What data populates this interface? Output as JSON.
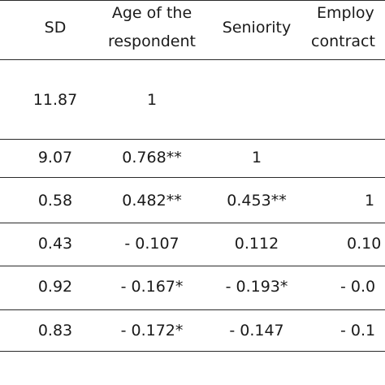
{
  "header": {
    "sd": "SD",
    "age_line1": "Age of the",
    "age_line2": "respondent",
    "seniority": "Seniority",
    "emp_line1": "Employ",
    "emp_line2": "contract"
  },
  "rows": [
    {
      "sd": "11.87",
      "age": "1",
      "seniority": "",
      "employment": ""
    },
    {
      "sd": "9.07",
      "age": "0.768**",
      "seniority": "1",
      "employment": ""
    },
    {
      "sd": "0.58",
      "age": "0.482**",
      "seniority": "0.453**",
      "employment": "1"
    },
    {
      "sd": "0.43",
      "age": "- 0.107",
      "seniority": "0.112",
      "employment": "0.10"
    },
    {
      "sd": "0.92",
      "age": "- 0.167*",
      "seniority": "- 0.193*",
      "employment": "- 0.0"
    },
    {
      "sd": "0.83",
      "age": "- 0.172*",
      "seniority": "- 0.147",
      "employment": "- 0.1"
    }
  ]
}
